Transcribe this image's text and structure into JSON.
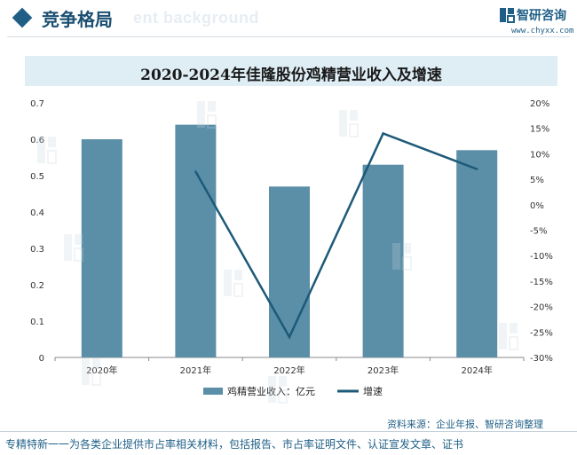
{
  "header": {
    "section_title": "竞争格局",
    "background_text": "ent background",
    "brand_name": "智研咨询",
    "brand_url": "www.chyxx.com"
  },
  "colors": {
    "accent": "#1f5f86",
    "bar": "#5b8fa8",
    "line": "#1d5a78",
    "title_band": "#dfeef5"
  },
  "chart_data": {
    "type": "bar+line",
    "title": "2020-2024年佳隆股份鸡精营业收入及增速",
    "categories": [
      "2020年",
      "2021年",
      "2022年",
      "2023年",
      "2024年"
    ],
    "series": [
      {
        "name": "鸡精营业收入：亿元",
        "type": "bar",
        "axis": "left",
        "values": [
          0.6,
          0.64,
          0.47,
          0.53,
          0.57
        ]
      },
      {
        "name": "增速",
        "type": "line",
        "axis": "right",
        "values": [
          null,
          6.5,
          -26.0,
          14.0,
          7.0
        ]
      }
    ],
    "left_axis": {
      "ylim": [
        0,
        0.7
      ],
      "ticks": [
        "0",
        "0.1",
        "0.2",
        "0.3",
        "0.4",
        "0.5",
        "0.6",
        "0.7"
      ]
    },
    "right_axis": {
      "ylim": [
        -30,
        20
      ],
      "ticks": [
        "-30%",
        "-25%",
        "-20%",
        "-15%",
        "-10%",
        "-5%",
        "0%",
        "5%",
        "10%",
        "15%",
        "20%"
      ]
    },
    "legend_position": "bottom",
    "grid": false
  },
  "source_text": "资料来源：企业年报、智研咨询整理",
  "footer_text": "专精特新一一为各类企业提供市占率相关材料，包括报告、市占率证明文件、认证宣发文章、证书"
}
